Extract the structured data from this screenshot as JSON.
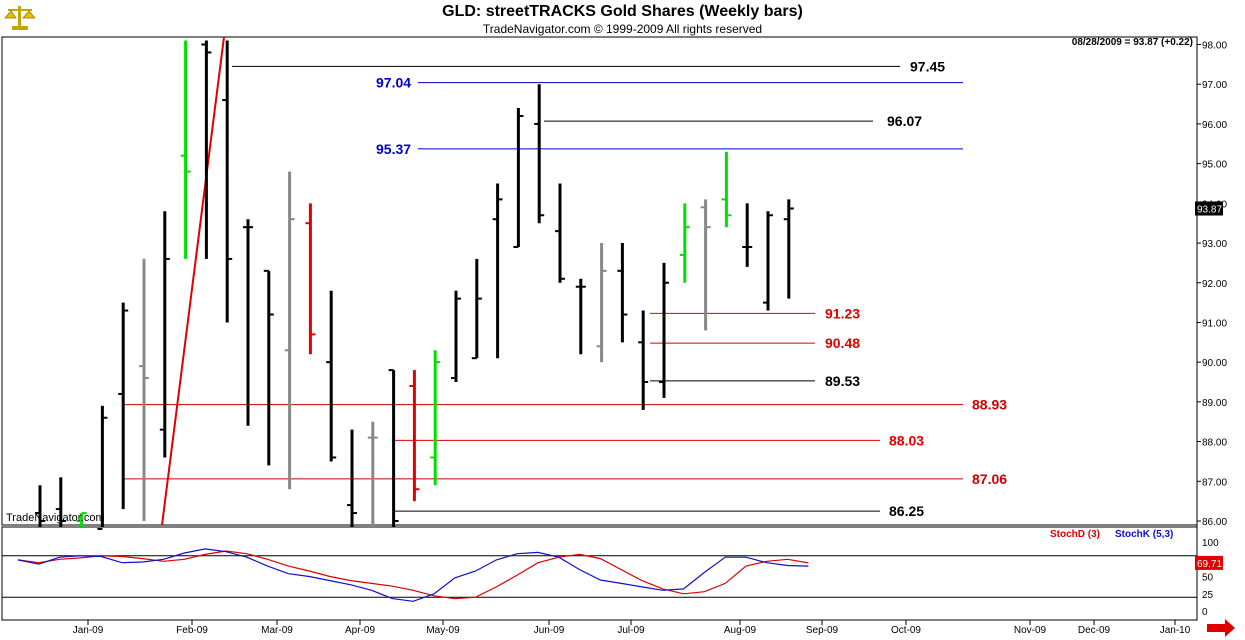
{
  "header": {
    "title": "GLD:  streetTRACKS Gold Shares  (Weekly bars)",
    "subtitle": "TradeNavigator.com © 1999-2009 All rights reserved",
    "quote": "08/28/2009 = 93.87 (+0.22)",
    "watermark": "TradeNavigator.com"
  },
  "colors": {
    "up": "#000000",
    "down": "#000000",
    "red": "#e00000",
    "green": "#00e000",
    "gray": "#888888",
    "blue_level": "#0000cc",
    "red_level": "#cc0000"
  },
  "chart_data": [
    {
      "type": "ohlc-bar",
      "title": "GLD:  streetTRACKS Gold Shares  (Weekly bars)",
      "ylim": [
        85.8,
        98.1
      ],
      "y_ticks": [
        "98.00",
        "97.00",
        "96.00",
        "95.00",
        "94.00",
        "93.00",
        "92.00",
        "91.00",
        "90.00",
        "89.00",
        "88.00",
        "87.00",
        "86.00"
      ],
      "x_ticks": [
        "Jan-09",
        "Feb-09",
        "Mar-09",
        "Apr-09",
        "May-09",
        "Jun-09",
        "Jul-09",
        "Aug-09",
        "Sep-09",
        "Oct-09",
        "Nov-09",
        "Dec-09",
        "Jan-10"
      ],
      "last_price": "93.87",
      "bars": [
        {
          "o": 86.2,
          "h": 86.9,
          "l": 85.8,
          "c": 86.0,
          "color": "black"
        },
        {
          "o": 86.3,
          "h": 87.1,
          "l": 85.8,
          "c": 86.0,
          "color": "black"
        },
        {
          "o": 86.0,
          "h": 86.2,
          "l": 85.8,
          "c": 86.2,
          "color": "green"
        },
        {
          "o": 85.8,
          "h": 88.9,
          "l": 85.8,
          "c": 88.6,
          "color": "black"
        },
        {
          "o": 89.2,
          "h": 91.5,
          "l": 86.3,
          "c": 91.3,
          "color": "black"
        },
        {
          "o": 89.9,
          "h": 92.6,
          "l": 86.0,
          "c": 89.6,
          "color": "gray"
        },
        {
          "o": 88.3,
          "h": 93.8,
          "l": 87.6,
          "c": 92.6,
          "color": "black"
        },
        {
          "o": 95.2,
          "h": 98.1,
          "l": 92.6,
          "c": 94.8,
          "color": "green"
        },
        {
          "o": 98.0,
          "h": 98.1,
          "l": 92.6,
          "c": 97.8,
          "color": "black"
        },
        {
          "o": 96.6,
          "h": 98.1,
          "l": 91.0,
          "c": 92.6,
          "color": "black"
        },
        {
          "o": 93.4,
          "h": 93.6,
          "l": 88.4,
          "c": 93.4,
          "color": "black"
        },
        {
          "o": 92.3,
          "h": 92.3,
          "l": 87.4,
          "c": 91.2,
          "color": "black"
        },
        {
          "o": 90.3,
          "h": 94.8,
          "l": 86.8,
          "c": 93.6,
          "color": "gray"
        },
        {
          "o": 93.5,
          "h": 94.0,
          "l": 90.2,
          "c": 90.7,
          "color": "red"
        },
        {
          "o": 90.0,
          "h": 91.8,
          "l": 87.5,
          "c": 87.6,
          "color": "black"
        },
        {
          "o": 86.4,
          "h": 88.3,
          "l": 85.8,
          "c": 86.2,
          "color": "black"
        },
        {
          "o": 88.1,
          "h": 88.5,
          "l": 85.8,
          "c": 88.1,
          "color": "gray"
        },
        {
          "o": 89.8,
          "h": 89.8,
          "l": 85.8,
          "c": 86.0,
          "color": "black"
        },
        {
          "o": 89.4,
          "h": 89.8,
          "l": 86.5,
          "c": 86.8,
          "color": "red"
        },
        {
          "o": 87.6,
          "h": 90.3,
          "l": 86.9,
          "c": 90.0,
          "color": "green"
        },
        {
          "o": 89.6,
          "h": 91.8,
          "l": 89.5,
          "c": 91.6,
          "color": "black"
        },
        {
          "o": 90.1,
          "h": 92.6,
          "l": 90.1,
          "c": 91.6,
          "color": "black"
        },
        {
          "o": 93.6,
          "h": 94.5,
          "l": 90.1,
          "c": 94.1,
          "color": "black"
        },
        {
          "o": 92.9,
          "h": 96.4,
          "l": 92.9,
          "c": 96.2,
          "color": "black"
        },
        {
          "o": 96.0,
          "h": 97.0,
          "l": 93.5,
          "c": 93.7,
          "color": "black"
        },
        {
          "o": 93.3,
          "h": 94.5,
          "l": 92.0,
          "c": 92.1,
          "color": "black"
        },
        {
          "o": 91.9,
          "h": 92.1,
          "l": 90.2,
          "c": 91.9,
          "color": "black"
        },
        {
          "o": 90.4,
          "h": 93.0,
          "l": 90.0,
          "c": 92.3,
          "color": "gray"
        },
        {
          "o": 92.3,
          "h": 93.0,
          "l": 90.5,
          "c": 91.2,
          "color": "black"
        },
        {
          "o": 90.5,
          "h": 91.3,
          "l": 88.8,
          "c": 89.5,
          "color": "black"
        },
        {
          "o": 89.5,
          "h": 92.5,
          "l": 89.1,
          "c": 92.0,
          "color": "black"
        },
        {
          "o": 92.7,
          "h": 94.0,
          "l": 92.0,
          "c": 93.4,
          "color": "green"
        },
        {
          "o": 93.9,
          "h": 94.1,
          "l": 90.8,
          "c": 93.4,
          "color": "gray"
        },
        {
          "o": 94.1,
          "h": 95.3,
          "l": 93.4,
          "c": 93.7,
          "color": "green"
        },
        {
          "o": 92.9,
          "h": 94.0,
          "l": 92.4,
          "c": 92.9,
          "color": "black"
        },
        {
          "o": 91.5,
          "h": 93.8,
          "l": 91.3,
          "c": 93.7,
          "color": "black"
        },
        {
          "o": 93.6,
          "h": 94.1,
          "l": 91.6,
          "c": 93.87,
          "color": "black"
        }
      ],
      "levels": [
        {
          "label": "97.45",
          "value": 97.45,
          "color": "black"
        },
        {
          "label": "97.04",
          "value": 97.04,
          "color": "blue"
        },
        {
          "label": "96.07",
          "value": 96.07,
          "color": "black"
        },
        {
          "label": "95.37",
          "value": 95.37,
          "color": "blue"
        },
        {
          "label": "91.23",
          "value": 91.23,
          "color": "red"
        },
        {
          "label": "90.48",
          "value": 90.48,
          "color": "red"
        },
        {
          "label": "89.53",
          "value": 89.53,
          "color": "black"
        },
        {
          "label": "88.93",
          "value": 88.93,
          "color": "darkred"
        },
        {
          "label": "88.03",
          "value": 88.03,
          "color": "red"
        },
        {
          "label": "87.06",
          "value": 87.06,
          "color": "darkred"
        },
        {
          "label": "86.25",
          "value": 86.25,
          "color": "black"
        }
      ]
    },
    {
      "type": "line",
      "title": "",
      "ylim": [
        -5,
        105
      ],
      "y_ticks": [
        "100",
        "75",
        "50",
        "25",
        "0"
      ],
      "reference_levels": [
        80,
        20
      ],
      "last_value": "69.71",
      "series": [
        {
          "name": "StochD (3)",
          "color": "#dd0000",
          "values": [
            74,
            70,
            75,
            77,
            80,
            79,
            76,
            72,
            75,
            82,
            87,
            83,
            75,
            65,
            58,
            50,
            44,
            40,
            36,
            30,
            22,
            18,
            20,
            35,
            52,
            70,
            78,
            82,
            76,
            60,
            44,
            32,
            25,
            28,
            40,
            65,
            72,
            75,
            69.7
          ]
        },
        {
          "name": "StochK (5,3)",
          "color": "#1010cc",
          "values": [
            74,
            68,
            78,
            80,
            79,
            70,
            71,
            75,
            84,
            90,
            86,
            78,
            65,
            54,
            50,
            44,
            38,
            30,
            18,
            14,
            25,
            48,
            58,
            74,
            83,
            85,
            78,
            60,
            45,
            40,
            35,
            30,
            32,
            56,
            78,
            78,
            70,
            66,
            65
          ]
        }
      ]
    }
  ]
}
